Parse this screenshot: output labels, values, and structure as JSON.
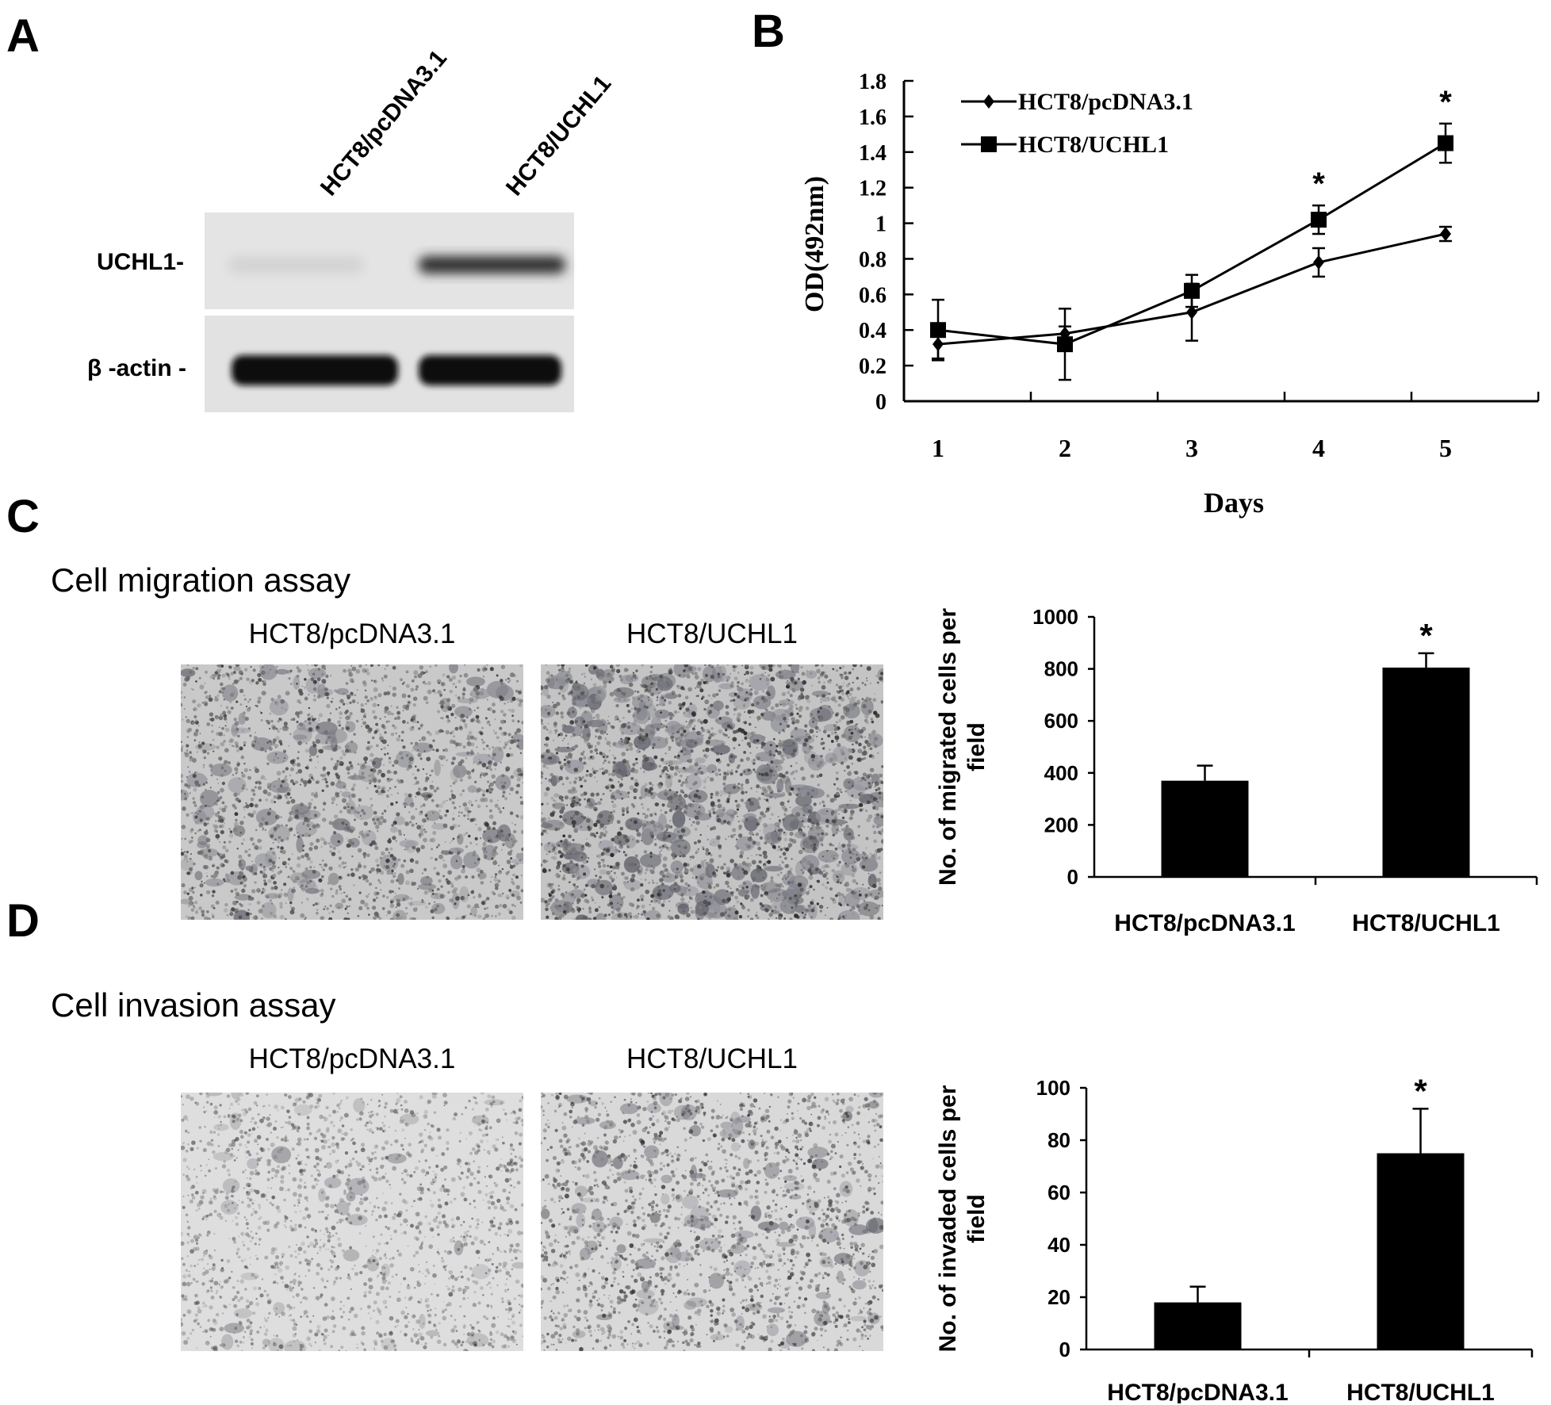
{
  "panels": {
    "a": "A",
    "b": "B",
    "c": "C",
    "d": "D"
  },
  "western_blot": {
    "lanes": [
      "HCT8/pcDNA3.1",
      "HCT8/UCHL1"
    ],
    "rows": [
      {
        "label": "UCHL1-",
        "band_intensity": [
          0.08,
          0.85
        ]
      },
      {
        "label": "β -actin -",
        "band_intensity": [
          1.0,
          1.0
        ]
      }
    ]
  },
  "migration": {
    "title": "Cell migration assay",
    "image_labels": [
      "HCT8/pcDNA3.1",
      "HCT8/UCHL1"
    ]
  },
  "invasion": {
    "title": "Cell invasion assay",
    "image_labels": [
      "HCT8/pcDNA3.1",
      "HCT8/UCHL1"
    ]
  },
  "chart_data": [
    {
      "id": "B",
      "type": "line",
      "x": [
        1,
        2,
        3,
        4,
        5
      ],
      "x_tick_labels": [
        "1",
        "2",
        "3",
        "4",
        "5"
      ],
      "xlabel": "Days",
      "ylabel": "OD(492nm)",
      "ylim": [
        0,
        1.8
      ],
      "y_ticks": [
        "0",
        "0.2",
        "0.4",
        "0.6",
        "0.8",
        "1",
        "1.2",
        "1.4",
        "1.6",
        "1.8"
      ],
      "legend_position": "top-left",
      "series": [
        {
          "name": "HCT8/pcDNA3.1",
          "marker": "diamond",
          "values": [
            0.32,
            0.38,
            0.5,
            0.78,
            0.94
          ],
          "errors": [
            0.08,
            0.04,
            0.16,
            0.08,
            0.04
          ]
        },
        {
          "name": "HCT8/UCHL1",
          "marker": "square",
          "values": [
            0.4,
            0.32,
            0.62,
            1.02,
            1.45
          ],
          "errors": [
            0.17,
            0.2,
            0.09,
            0.08,
            0.11
          ]
        }
      ],
      "annotations": [
        {
          "x": 4,
          "text": "*"
        },
        {
          "x": 5,
          "text": "*"
        }
      ]
    },
    {
      "id": "C",
      "type": "bar",
      "categories": [
        "HCT8/pcDNA3.1",
        "HCT8/UCHL1"
      ],
      "values": [
        370,
        805
      ],
      "errors": [
        58,
        55
      ],
      "ylabel": "No. of migrated cells per field",
      "ylim": [
        0,
        1000
      ],
      "y_ticks": [
        "0",
        "200",
        "400",
        "600",
        "800",
        "1000"
      ],
      "annotations": [
        {
          "category": "HCT8/UCHL1",
          "text": "*"
        }
      ]
    },
    {
      "id": "D",
      "type": "bar",
      "categories": [
        "HCT8/pcDNA3.1",
        "HCT8/UCHL1"
      ],
      "values": [
        18,
        75
      ],
      "errors": [
        6,
        17
      ],
      "ylabel": "No. of invaded cells per field",
      "ylim": [
        0,
        100
      ],
      "y_ticks": [
        "0",
        "20",
        "40",
        "60",
        "80",
        "100"
      ],
      "annotations": [
        {
          "category": "HCT8/UCHL1",
          "text": "*"
        }
      ]
    }
  ]
}
